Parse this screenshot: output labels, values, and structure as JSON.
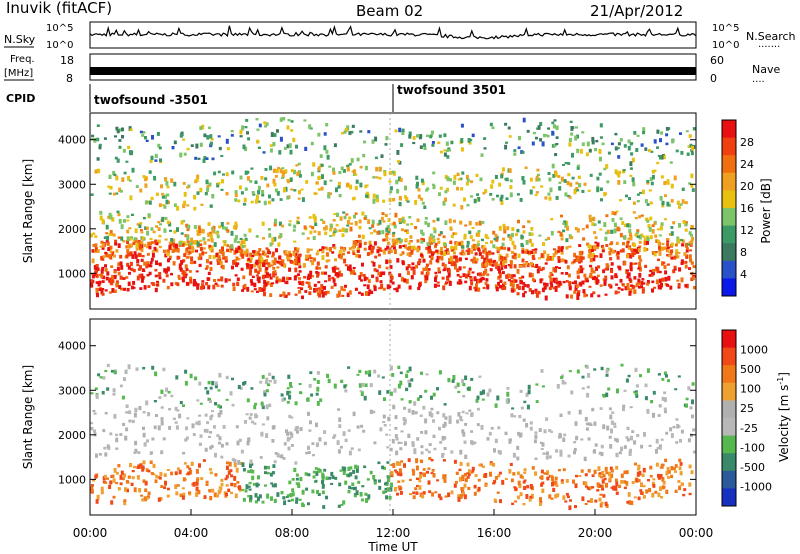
{
  "header": {
    "station": "Inuvik (fitACF)",
    "beam": "Beam 02",
    "date": "21/Apr/2012"
  },
  "panel_labels": {
    "nsky": "N.Sky",
    "nsearch": "N.Search",
    "nsearch_dots": "·······",
    "freq": "Freq.",
    "freq_unit": "[MHz]",
    "nave": "Nave",
    "nave_dots": "····",
    "cpid": "CPID"
  },
  "cpid_entries": [
    {
      "time_h": 0.0,
      "label": "twofsound -3501"
    },
    {
      "time_h": 12.0,
      "label": "twofsound 3501"
    }
  ],
  "colors": {
    "power_scale": [
      "#0a18e8",
      "#2a52c8",
      "#3c7a60",
      "#3c9a64",
      "#7cc468",
      "#e8c010",
      "#f0a020",
      "#f07010",
      "#f04010",
      "#e81010"
    ],
    "velocity_scale": [
      "#1830c0",
      "#2a5a9a",
      "#3a8a6a",
      "#58b850",
      "#b8b8b8",
      "#b0b0b0",
      "#f0a030",
      "#f07818",
      "#f04818",
      "#e81010"
    ]
  },
  "chart_data": [
    {
      "type": "line",
      "name": "N.Sky / N.Search",
      "y_left_ticks": [
        "10^5",
        "10^0"
      ],
      "y_right_ticks": [
        "10^5",
        "10^0"
      ],
      "xlim": [
        0,
        24
      ]
    },
    {
      "type": "line",
      "name": "Freq / Nave",
      "y_left_ticks": [
        "18",
        "8"
      ],
      "y_right_ticks": [
        "60",
        "0"
      ],
      "xlim": [
        0,
        24
      ]
    },
    {
      "type": "heatmap",
      "ylabel": "Slant Range [km]",
      "yticks": [
        1000,
        2000,
        3000,
        4000
      ],
      "ylim": [
        200,
        4600
      ],
      "xlim": [
        0,
        24
      ],
      "colorbar": {
        "label": "Power [dB]",
        "ticks": [
          "28",
          "24",
          "20",
          "16",
          "12",
          "8",
          "4"
        ]
      },
      "bands": [
        {
          "range_km": [
            600,
            1300
          ],
          "level": 0.95
        },
        {
          "range_km": [
            1300,
            1700
          ],
          "level": 0.8
        },
        {
          "range_km": [
            1700,
            2300
          ],
          "level": 0.55
        },
        {
          "range_km": [
            2600,
            3400
          ],
          "level": 0.5
        },
        {
          "range_km": [
            3600,
            4400
          ],
          "level": 0.35
        }
      ]
    },
    {
      "type": "heatmap",
      "ylabel": "Slant Range [km]",
      "yticks": [
        1000,
        2000,
        3000,
        4000
      ],
      "ylim": [
        200,
        4600
      ],
      "xlim": [
        0,
        24
      ],
      "xticks": [
        "00:00",
        "04:00",
        "08:00",
        "12:00",
        "16:00",
        "20:00",
        "00:00"
      ],
      "xlabel": "Time UT",
      "colorbar": {
        "label": "Velocity [m s",
        "label_sup": "-1",
        "label_end": "]",
        "ticks": [
          "1000",
          "500",
          "100",
          "25",
          "-25",
          "-100",
          "-500",
          "-1000"
        ]
      },
      "bands": [
        {
          "range_km": [
            500,
            1400
          ],
          "level": 0.75
        },
        {
          "range_km": [
            1500,
            2600
          ],
          "level": 0.45
        },
        {
          "range_km": [
            2700,
            3500
          ],
          "level": 0.3
        }
      ]
    }
  ]
}
